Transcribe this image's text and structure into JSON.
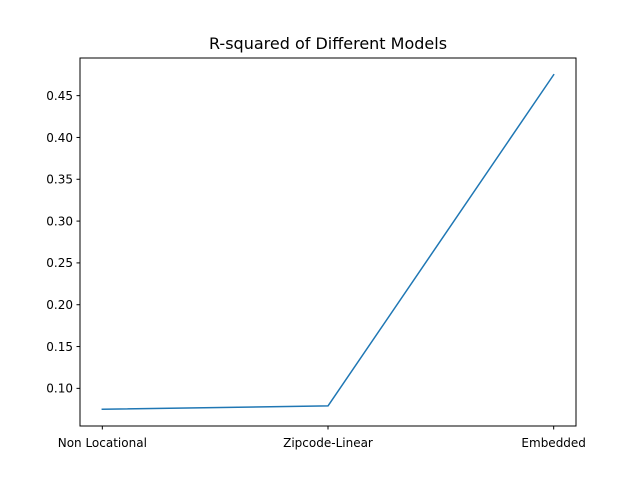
{
  "chart_data": {
    "type": "line",
    "title": "R-squared of Different Models",
    "xlabel": "",
    "ylabel": "",
    "categories": [
      "Non Locational",
      "Zipcode-Linear",
      "Embedded"
    ],
    "series": [
      {
        "values": [
          0.075,
          0.079,
          0.475
        ],
        "color": "#1f77b4"
      }
    ],
    "y_ticks": [
      0.1,
      0.15,
      0.2,
      0.25,
      0.3,
      0.35,
      0.4,
      0.45
    ],
    "y_tick_labels": [
      "0.10",
      "0.15",
      "0.20",
      "0.25",
      "0.30",
      "0.35",
      "0.40",
      "0.45"
    ],
    "ylim": [
      0.055,
      0.495
    ],
    "grid": false,
    "legend": "none"
  }
}
